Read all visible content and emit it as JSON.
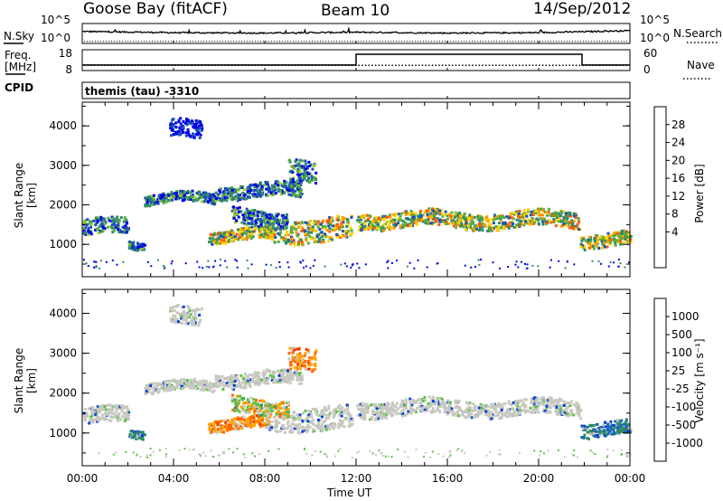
{
  "header": {
    "station": "Goose Bay (fitACF)",
    "beam": "Beam 10",
    "date": "14/Sep/2012"
  },
  "panels": {
    "nsky_label": "N.Sky",
    "nsearch_label": "N.Search",
    "freq_label_1": "Freq.",
    "freq_label_2": "[MHz]",
    "nave_label": "Nave",
    "cpid_label": "CPID",
    "cpid_value": "themis (tau) -3310",
    "noise_left_ticks": [
      "10^5",
      "10^0"
    ],
    "noise_right_ticks": [
      "10^5",
      "10^0"
    ],
    "freq_ticks": [
      "18",
      "8"
    ],
    "nave_ticks": [
      "60",
      "0"
    ]
  },
  "colorbars": {
    "power_title": "Power [dB]",
    "power_ticks": [
      "28",
      "24",
      "20",
      "16",
      "12",
      "8",
      "4"
    ],
    "power_colors": [
      "#0000e6",
      "#1c52b4",
      "#2d8a6a",
      "#55b03c",
      "#9ccf2d",
      "#ffd200",
      "#ff9a00",
      "#ff5a00",
      "#e80000"
    ],
    "velocity_title": "Velocity [m s⁻¹]",
    "velocity_ticks": [
      "1000",
      "500",
      "100",
      "25",
      "-25",
      "-100",
      "-500",
      "-1000"
    ],
    "velocity_colors": [
      "#0a3fd8",
      "#1b6ab4",
      "#2e8c64",
      "#5cc24a",
      "#c8c8c0",
      "#ffa500",
      "#ff6a00",
      "#f03c00",
      "#e00000"
    ]
  },
  "chart_data": [
    {
      "type": "line",
      "title": "",
      "x": [
        "00:00",
        "04:00",
        "08:00",
        "12:00",
        "16:00",
        "20:00",
        "00:00"
      ],
      "series": [
        {
          "name": "N.Sky",
          "values": [
            3.0,
            2.7,
            2.6,
            2.8,
            2.6,
            2.7,
            3.2
          ]
        },
        {
          "name": "N.Search",
          "values": [
            0.5,
            0.5,
            0.5,
            0.5,
            0.5,
            0.5,
            0.5
          ]
        }
      ],
      "ylim": [
        0,
        5
      ]
    },
    {
      "type": "line",
      "title": "",
      "x": [
        "00:00",
        "04:00",
        "08:00",
        "12:00",
        "16:00",
        "20:00",
        "00:00"
      ],
      "series": [
        {
          "name": "Freq. [MHz]",
          "values": [
            10.5,
            10.5,
            10.5,
            10.5,
            10.5,
            10.5,
            10.5
          ]
        },
        {
          "name": "Nave",
          "step_times_h": [
            0,
            12.0,
            12.0,
            21.9,
            21.9,
            24
          ],
          "step_values": [
            16,
            16,
            47,
            47,
            16,
            16
          ]
        }
      ],
      "ylim_left": [
        8,
        18
      ],
      "ylim_right": [
        0,
        60
      ]
    },
    {
      "type": "heatmap",
      "title": "",
      "xlabel": "",
      "ylabel": "Slant Range [km]",
      "x_ticks": [
        "00:00",
        "04:00",
        "08:00",
        "12:00",
        "16:00",
        "20:00",
        "00:00"
      ],
      "y_ticks": [
        "1000",
        "2000",
        "3000",
        "4000"
      ],
      "xlim_hours": [
        0,
        24
      ],
      "ylim": [
        180,
        4600
      ],
      "colorbar": "Power [dB]",
      "echo_bands": [
        {
          "t": [
            0.0,
            2.0
          ],
          "r": [
            1250,
            1650
          ],
          "level": "mid"
        },
        {
          "t": [
            2.0,
            2.7
          ],
          "r": [
            950,
            1150
          ],
          "level": "mid"
        },
        {
          "t": [
            2.7,
            5.8
          ],
          "r": [
            2050,
            2300
          ],
          "level": "mid"
        },
        {
          "t": [
            5.8,
            9.6
          ],
          "r": [
            2200,
            2550
          ],
          "level": "mid"
        },
        {
          "t": [
            5.5,
            8.2
          ],
          "r": [
            1100,
            1400
          ],
          "level": "high"
        },
        {
          "t": [
            8.0,
            11.8
          ],
          "r": [
            1100,
            1700
          ],
          "level": "high"
        },
        {
          "t": [
            6.5,
            9.0
          ],
          "r": [
            1500,
            1900
          ],
          "level": "mid"
        },
        {
          "t": [
            12.0,
            21.8
          ],
          "r": [
            1450,
            1850
          ],
          "level": "high"
        },
        {
          "t": [
            21.8,
            24.0
          ],
          "r": [
            950,
            1300
          ],
          "level": "high"
        },
        {
          "t": [
            3.8,
            5.2
          ],
          "r": [
            3700,
            4150
          ],
          "level": "low"
        },
        {
          "t": [
            9.0,
            10.2
          ],
          "r": [
            2600,
            3200
          ],
          "level": "mid"
        }
      ]
    },
    {
      "type": "heatmap",
      "title": "",
      "xlabel": "Time UT",
      "ylabel": "Slant Range [km]",
      "x_ticks": [
        "00:00",
        "04:00",
        "08:00",
        "12:00",
        "16:00",
        "20:00",
        "00:00"
      ],
      "y_ticks": [
        "1000",
        "2000",
        "3000",
        "4000"
      ],
      "xlim_hours": [
        0,
        24
      ],
      "ylim": [
        180,
        4600
      ],
      "colorbar": "Velocity [m s^-1]",
      "echo_bands": [
        {
          "t": [
            0.0,
            2.0
          ],
          "r": [
            1250,
            1650
          ],
          "velocity": "near-zero"
        },
        {
          "t": [
            2.0,
            2.7
          ],
          "r": [
            950,
            1150
          ],
          "velocity": "positive"
        },
        {
          "t": [
            2.7,
            5.8
          ],
          "r": [
            2050,
            2300
          ],
          "velocity": "near-zero"
        },
        {
          "t": [
            5.8,
            9.6
          ],
          "r": [
            2200,
            2550
          ],
          "velocity": "near-zero"
        },
        {
          "t": [
            5.5,
            8.2
          ],
          "r": [
            1100,
            1400
          ],
          "velocity": "negative"
        },
        {
          "t": [
            8.0,
            11.8
          ],
          "r": [
            1100,
            1700
          ],
          "velocity": "near-zero"
        },
        {
          "t": [
            6.5,
            9.0
          ],
          "r": [
            1500,
            1900
          ],
          "velocity": "mixed"
        },
        {
          "t": [
            12.0,
            21.8
          ],
          "r": [
            1450,
            1850
          ],
          "velocity": "near-zero"
        },
        {
          "t": [
            21.8,
            24.0
          ],
          "r": [
            950,
            1300
          ],
          "velocity": "positive"
        },
        {
          "t": [
            3.8,
            5.2
          ],
          "r": [
            3700,
            4150
          ],
          "velocity": "near-zero"
        },
        {
          "t": [
            9.0,
            10.2
          ],
          "r": [
            2600,
            3200
          ],
          "velocity": "negative"
        }
      ]
    }
  ]
}
